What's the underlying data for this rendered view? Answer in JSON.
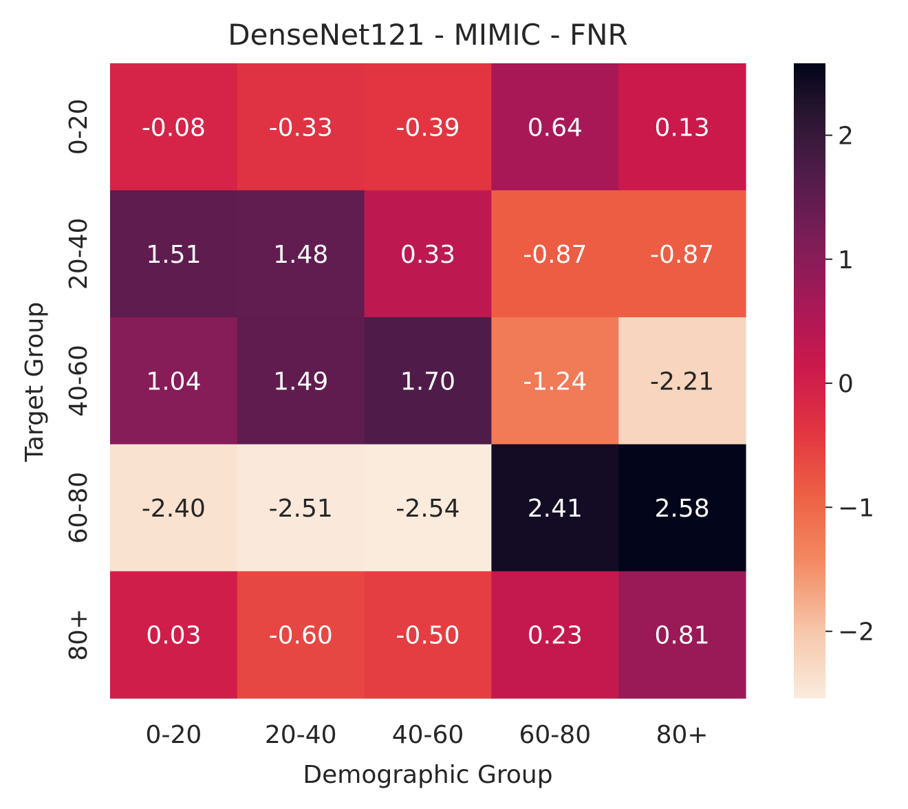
{
  "chart_data": {
    "type": "heatmap",
    "title": "DenseNet121 - MIMIC - FNR",
    "xlabel": "Demographic Group",
    "ylabel": "Target Group",
    "x_categories": [
      "0-20",
      "20-40",
      "40-60",
      "60-80",
      "80+"
    ],
    "y_categories": [
      "0-20",
      "20-40",
      "40-60",
      "60-80",
      "80+"
    ],
    "values": [
      [
        -0.08,
        -0.33,
        -0.39,
        0.64,
        0.13
      ],
      [
        1.51,
        1.48,
        0.33,
        -0.87,
        -0.87
      ],
      [
        1.04,
        1.49,
        1.7,
        -1.24,
        -2.21
      ],
      [
        -2.4,
        -2.51,
        -2.54,
        2.41,
        2.58
      ],
      [
        0.03,
        -0.6,
        -0.5,
        0.23,
        0.81
      ]
    ],
    "value_labels": [
      [
        "-0.08",
        "-0.33",
        "-0.39",
        "0.64",
        "0.13"
      ],
      [
        "1.51",
        "1.48",
        "0.33",
        "-0.87",
        "-0.87"
      ],
      [
        "1.04",
        "1.49",
        "1.70",
        "-1.24",
        "-2.21"
      ],
      [
        "-2.40",
        "-2.51",
        "-2.54",
        "2.41",
        "2.58"
      ],
      [
        "0.03",
        "-0.60",
        "-0.50",
        "0.23",
        "0.81"
      ]
    ],
    "colorscale": "rocket_r",
    "vmin": -2.54,
    "vmax": 2.58,
    "colorbar": {
      "ticks": [
        2,
        1,
        0,
        -1,
        -2
      ],
      "tick_labels": [
        "2",
        "1",
        "0",
        "−1",
        "−2"
      ]
    }
  }
}
